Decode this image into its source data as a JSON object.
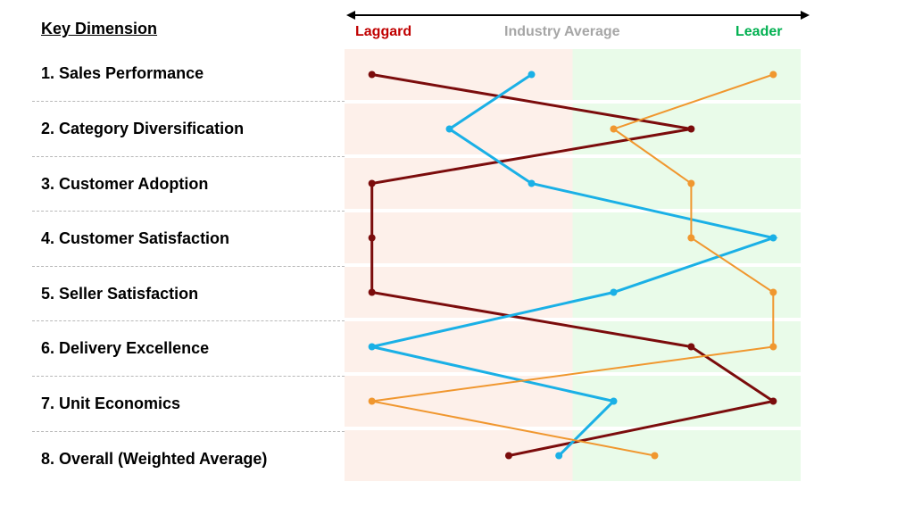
{
  "header": {
    "key_title": "Key Dimension",
    "scale_left": "Laggard",
    "scale_middle": "Industry Average",
    "scale_right": "Leader"
  },
  "colors": {
    "laggard_text": "#c00000",
    "average_text": "#a6a6a6",
    "leader_text": "#00b050",
    "laggard_zone": "#fdf0ea",
    "leader_zone": "#e9fbe9"
  },
  "chart_data": {
    "type": "line",
    "orientation": "horizontal-profile",
    "categories": [
      "1. Sales Performance",
      "2. Category Diversification",
      "3. Customer Adoption",
      "4. Customer Satisfaction",
      "5. Seller Satisfaction",
      "6. Delivery Excellence",
      "7. Unit Economics",
      "8. Overall (Weighted Average)"
    ],
    "xlim": [
      0,
      100
    ],
    "average_position": 50,
    "series": [
      {
        "color": "#7b0c0c",
        "stroke": 3,
        "values": [
          6,
          76,
          6,
          6,
          6,
          76,
          94,
          36
        ]
      },
      {
        "color": "#1ab0e6",
        "stroke": 3,
        "values": [
          41,
          23,
          41,
          94,
          59,
          6,
          59,
          47
        ]
      },
      {
        "color": "#f0972f",
        "stroke": 2,
        "values": [
          94,
          59,
          76,
          76,
          94,
          94,
          6,
          68
        ]
      }
    ],
    "grid": false,
    "legend": "none"
  }
}
